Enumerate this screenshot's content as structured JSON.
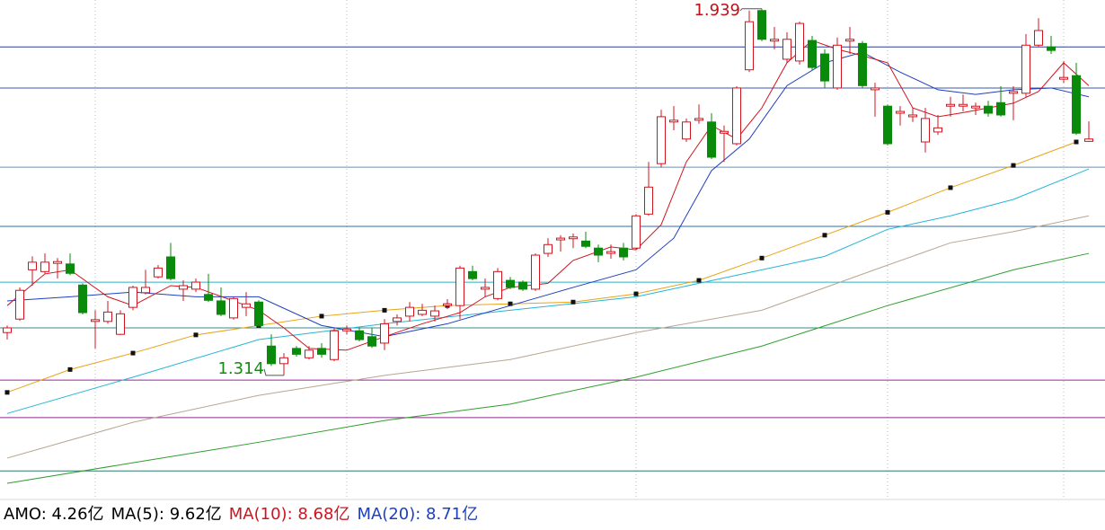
{
  "chart_data": {
    "type": "candlestick",
    "ylim": [
      1.104,
      1.954
    ],
    "up_color": "#d0141e",
    "down_color": "#0a8a0a",
    "open": [
      1.387,
      1.41,
      1.494,
      1.491,
      1.505,
      1.504,
      1.468,
      1.406,
      1.406,
      1.384,
      1.43,
      1.455,
      1.482,
      1.516,
      1.461,
      1.461,
      1.452,
      1.441,
      1.412,
      1.43,
      1.439,
      1.364,
      1.334,
      1.36,
      1.344,
      1.36,
      1.341,
      1.39,
      1.39,
      1.38,
      1.369,
      1.406,
      1.415,
      1.418,
      1.415,
      1.433,
      1.433,
      1.491,
      1.461,
      1.445,
      1.476,
      1.473,
      1.461,
      1.522,
      1.545,
      1.547,
      1.543,
      1.531,
      1.522,
      1.531,
      1.531,
      1.589,
      1.675,
      1.746,
      1.717,
      1.749,
      1.746,
      1.727,
      1.709,
      1.835,
      1.936,
      1.884,
      1.853,
      1.85,
      1.885,
      1.862,
      1.804,
      1.884,
      1.88,
      1.801,
      1.773,
      1.761,
      1.755,
      1.712,
      1.729,
      1.773,
      1.773,
      1.77,
      1.773,
      1.779,
      1.795,
      1.795,
      1.877,
      1.874,
      1.819,
      1.825,
      1.713
    ],
    "high": [
      1.399,
      1.464,
      1.517,
      1.522,
      1.514,
      1.522,
      1.471,
      1.425,
      1.441,
      1.425,
      1.467,
      1.494,
      1.502,
      1.54,
      1.476,
      1.479,
      1.487,
      1.464,
      1.448,
      1.456,
      1.442,
      1.384,
      1.352,
      1.364,
      1.364,
      1.369,
      1.395,
      1.399,
      1.395,
      1.395,
      1.41,
      1.418,
      1.439,
      1.436,
      1.433,
      1.444,
      1.501,
      1.501,
      1.479,
      1.497,
      1.482,
      1.476,
      1.522,
      1.548,
      1.553,
      1.556,
      1.559,
      1.537,
      1.537,
      1.54,
      1.589,
      1.678,
      1.767,
      1.773,
      1.752,
      1.776,
      1.761,
      1.74,
      1.807,
      1.936,
      1.939,
      1.908,
      1.899,
      1.917,
      1.893,
      1.87,
      1.89,
      1.908,
      1.884,
      1.813,
      1.776,
      1.773,
      1.77,
      1.77,
      1.758,
      1.789,
      1.793,
      1.779,
      1.782,
      1.807,
      1.807,
      1.896,
      1.923,
      1.893,
      1.85,
      1.847,
      1.747
    ],
    "low": [
      1.375,
      1.407,
      1.467,
      1.487,
      1.479,
      1.485,
      1.418,
      1.36,
      1.402,
      1.383,
      1.425,
      1.452,
      1.479,
      1.476,
      1.441,
      1.456,
      1.439,
      1.415,
      1.409,
      1.415,
      1.396,
      1.33,
      1.314,
      1.346,
      1.341,
      1.344,
      1.338,
      1.384,
      1.372,
      1.361,
      1.357,
      1.399,
      1.406,
      1.415,
      1.406,
      1.427,
      1.41,
      1.476,
      1.448,
      1.442,
      1.461,
      1.458,
      1.458,
      1.516,
      1.525,
      1.531,
      1.531,
      1.507,
      1.513,
      1.51,
      1.528,
      1.586,
      1.669,
      1.732,
      1.712,
      1.743,
      1.683,
      1.678,
      1.706,
      1.831,
      1.884,
      1.87,
      1.847,
      1.844,
      1.835,
      1.804,
      1.801,
      1.862,
      1.804,
      1.755,
      1.706,
      1.74,
      1.746,
      1.694,
      1.724,
      1.755,
      1.764,
      1.758,
      1.755,
      1.755,
      1.749,
      1.789,
      1.874,
      1.862,
      1.813,
      1.724,
      1.712
    ],
    "close": [
      1.395,
      1.459,
      1.507,
      1.507,
      1.508,
      1.488,
      1.421,
      1.409,
      1.422,
      1.419,
      1.464,
      1.464,
      1.497,
      1.479,
      1.467,
      1.473,
      1.442,
      1.418,
      1.445,
      1.436,
      1.399,
      1.334,
      1.344,
      1.35,
      1.357,
      1.35,
      1.39,
      1.393,
      1.375,
      1.364,
      1.402,
      1.412,
      1.43,
      1.425,
      1.424,
      1.436,
      1.497,
      1.479,
      1.464,
      1.491,
      1.464,
      1.461,
      1.519,
      1.537,
      1.548,
      1.55,
      1.534,
      1.519,
      1.525,
      1.516,
      1.586,
      1.635,
      1.755,
      1.749,
      1.746,
      1.752,
      1.686,
      1.73,
      1.804,
      1.917,
      1.887,
      1.887,
      1.887,
      1.914,
      1.839,
      1.816,
      1.877,
      1.887,
      1.808,
      1.804,
      1.709,
      1.764,
      1.758,
      1.752,
      1.736,
      1.776,
      1.776,
      1.773,
      1.761,
      1.758,
      1.798,
      1.877,
      1.902,
      1.868,
      1.822,
      1.727,
      1.717
    ],
    "lines": [
      {
        "color": "#2e9e2e",
        "x": [
          0,
          10,
          20,
          30,
          40,
          50,
          60,
          70,
          80,
          86
        ],
        "values": [
          1.13,
          1.165,
          1.2,
          1.237,
          1.265,
          1.311,
          1.364,
          1.433,
          1.494,
          1.522
        ]
      },
      {
        "color": "#b8a590",
        "x": [
          0,
          10,
          20,
          30,
          40,
          50,
          60,
          70,
          75,
          80,
          86
        ],
        "values": [
          1.173,
          1.234,
          1.28,
          1.314,
          1.341,
          1.387,
          1.425,
          1.502,
          1.54,
          1.559,
          1.586
        ]
      },
      {
        "color": "#26b5d6",
        "x": [
          0,
          10,
          20,
          30,
          40,
          50,
          55,
          60,
          65,
          70,
          75,
          80,
          86
        ],
        "values": [
          1.249,
          1.311,
          1.375,
          1.402,
          1.425,
          1.448,
          1.471,
          1.494,
          1.517,
          1.563,
          1.586,
          1.614,
          1.666
        ]
      },
      {
        "color": "#e8a317",
        "markers": true,
        "x": [
          0,
          5,
          10,
          15,
          20,
          25,
          30,
          35,
          40,
          45,
          50,
          55,
          60,
          65,
          70,
          75,
          80,
          85
        ],
        "values": [
          1.285,
          1.324,
          1.352,
          1.383,
          1.399,
          1.415,
          1.425,
          1.433,
          1.436,
          1.439,
          1.453,
          1.476,
          1.514,
          1.553,
          1.592,
          1.634,
          1.672,
          1.712
        ]
      },
      {
        "color": "#1f3fbf",
        "x": [
          0,
          5,
          10,
          15,
          20,
          25,
          30,
          35,
          40,
          45,
          50,
          53,
          56,
          59,
          62,
          65,
          68,
          71,
          74,
          77,
          80,
          83,
          86
        ],
        "values": [
          1.441,
          1.448,
          1.456,
          1.448,
          1.448,
          1.399,
          1.38,
          1.402,
          1.433,
          1.464,
          1.494,
          1.548,
          1.663,
          1.717,
          1.808,
          1.847,
          1.865,
          1.831,
          1.801,
          1.793,
          1.801,
          1.804,
          1.789
        ]
      },
      {
        "color": "#d0141e",
        "x": [
          0,
          3,
          5,
          8,
          10,
          13,
          15,
          18,
          20,
          22,
          24,
          27,
          30,
          33,
          36,
          38,
          40,
          43,
          45,
          48,
          50,
          52,
          54,
          56,
          58,
          60,
          62,
          64,
          66,
          68,
          70,
          72,
          74,
          76,
          78,
          80,
          82,
          84,
          86
        ],
        "values": [
          1.433,
          1.487,
          1.494,
          1.448,
          1.433,
          1.467,
          1.464,
          1.441,
          1.425,
          1.395,
          1.36,
          1.357,
          1.38,
          1.402,
          1.421,
          1.448,
          1.464,
          1.471,
          1.51,
          1.533,
          1.528,
          1.571,
          1.678,
          1.74,
          1.717,
          1.77,
          1.847,
          1.885,
          1.87,
          1.859,
          1.847,
          1.77,
          1.755,
          1.762,
          1.77,
          1.778,
          1.798,
          1.847,
          1.808
        ]
      }
    ],
    "hlines": [
      {
        "value": 1.874,
        "color": "#2a3f9a"
      },
      {
        "value": 1.804,
        "color": "#3a5aa8"
      },
      {
        "value": 1.669,
        "color": "#6f8fb0"
      },
      {
        "value": 1.568,
        "color": "#2c6fa8"
      },
      {
        "value": 1.473,
        "color": "#2bb0c8"
      },
      {
        "value": 1.395,
        "color": "#3a8a8a"
      },
      {
        "value": 1.306,
        "color": "#a020a0"
      },
      {
        "value": 1.242,
        "color": "#8a2a8a"
      },
      {
        "value": 1.151,
        "color": "#2a7a6a"
      }
    ],
    "xgrid": [
      7,
      27,
      50,
      70,
      84
    ],
    "annotations": {
      "high": "1.939",
      "low": "1.314",
      "high_color": "#c0101a",
      "low_color": "#158a15"
    },
    "volume_legend": [
      {
        "text": "AMO: 4.26亿",
        "color": "#000000"
      },
      {
        "text": "MA(5): 9.62亿",
        "color": "#000000"
      },
      {
        "text": "MA(10): 8.68亿",
        "color": "#d0141e"
      },
      {
        "text": "MA(20): 8.71亿",
        "color": "#1f3fbf"
      }
    ]
  }
}
